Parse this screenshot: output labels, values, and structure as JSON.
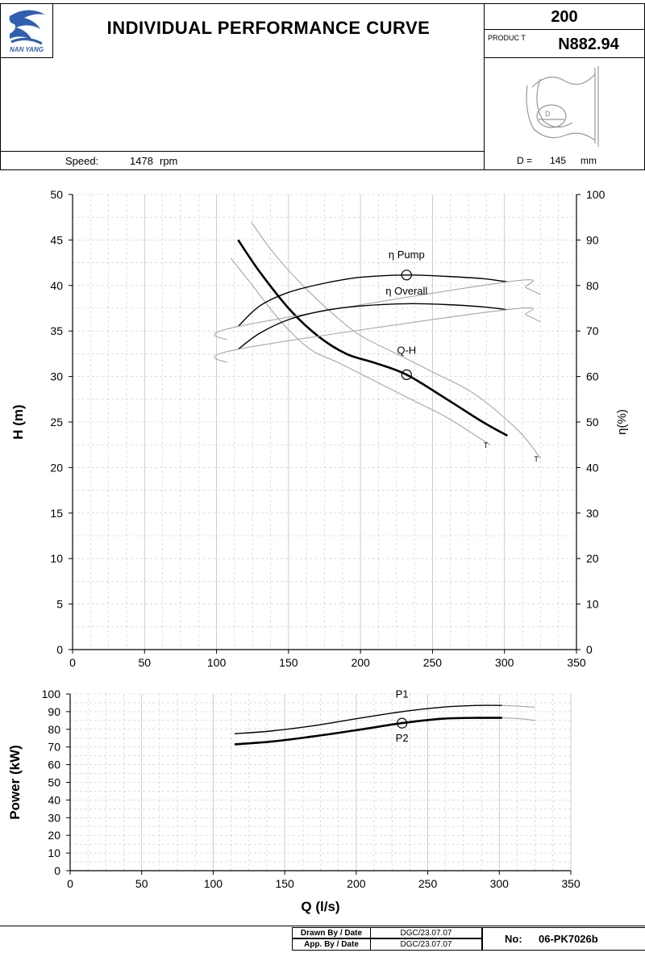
{
  "header": {
    "title": "INDIVIDUAL PERFORMANCE  CURVE",
    "logo_text": "NAN YANG",
    "model": "200",
    "product_label": "PRODUC T",
    "product_code": "N882.94",
    "speed_label": "Speed:",
    "speed_value": "1478",
    "speed_unit": "rpm",
    "diameter_label": "D =",
    "diameter_value": "145",
    "diameter_unit": "mm",
    "impeller_label": "D"
  },
  "footer": {
    "drawn_label": "Drawn By / Date",
    "drawn_value": "DGC/23.07.07",
    "approved_label": "App. By / Date",
    "approved_value": "DGC/23.07.07",
    "no_label": "No:",
    "no_value": "06-PK7026b"
  },
  "colors": {
    "main_curve": "#000000",
    "tolerance_curve": "#a6a6a6",
    "grid": "#c8c8c8"
  },
  "chart_data": [
    {
      "type": "line",
      "xlabel": "",
      "ylabel": "H (m)",
      "y2label": "η(%)",
      "xlim": [
        0,
        350
      ],
      "ylim": [
        0,
        50
      ],
      "y2lim": [
        0,
        100
      ],
      "xticks": [
        "0",
        "50",
        "100",
        "150",
        "200",
        "250",
        "300",
        "350"
      ],
      "yticks": [
        "0",
        "5",
        "10",
        "15",
        "20",
        "25",
        "30",
        "35",
        "40",
        "45",
        "50"
      ],
      "y2ticks": [
        "0",
        "10",
        "20",
        "30",
        "40",
        "50",
        "60",
        "70",
        "80",
        "90",
        "100"
      ],
      "grid": true,
      "series": [
        {
          "name": "Q-H",
          "axis": "left",
          "style": "main",
          "x": [
            115,
            130,
            150,
            170,
            190,
            210,
            232,
            260,
            285,
            302
          ],
          "y": [
            45,
            41.5,
            37.5,
            34.5,
            32.5,
            31.5,
            30.2,
            27.5,
            25,
            23.5
          ]
        },
        {
          "name": "",
          "axis": "left",
          "style": "tolerance",
          "end_label": "T",
          "x": [
            124,
            140,
            160,
            180,
            200,
            225,
            250,
            280,
            310,
            325
          ],
          "y": [
            47,
            43.5,
            40,
            37,
            34.5,
            32.5,
            30.5,
            28,
            24,
            21
          ]
        },
        {
          "name": "",
          "axis": "left",
          "style": "tolerance",
          "end_label": "T",
          "x": [
            110,
            125,
            145,
            165,
            185,
            210,
            235,
            260,
            290
          ],
          "y": [
            43,
            40,
            36,
            33,
            31.5,
            29.5,
            27.5,
            25.5,
            22.5
          ]
        },
        {
          "name": "η Pump",
          "axis": "right",
          "style": "main",
          "x": [
            115,
            130,
            150,
            175,
            200,
            232,
            260,
            285,
            302
          ],
          "y": [
            71,
            75.5,
            78.5,
            80.5,
            81.8,
            82.3,
            82,
            81.5,
            80.8
          ]
        },
        {
          "name": "",
          "axis": "right",
          "style": "tolerance",
          "x": [
            107,
            115,
            302,
            315,
            325
          ],
          "y": [
            68,
            71,
            80.8,
            79.5,
            78
          ]
        },
        {
          "name": "η Overall",
          "axis": "right",
          "style": "main",
          "x": [
            115,
            130,
            150,
            175,
            200,
            232,
            260,
            285,
            302
          ],
          "y": [
            66,
            69.5,
            72.5,
            74.5,
            75.5,
            76,
            75.8,
            75.3,
            74.7
          ]
        },
        {
          "name": "",
          "axis": "right",
          "style": "tolerance",
          "x": [
            107,
            115,
            302,
            315,
            325
          ],
          "y": [
            63,
            66,
            74.7,
            73.5,
            72
          ]
        }
      ],
      "markers": [
        {
          "x": 232,
          "y": 30.2,
          "axis": "left"
        },
        {
          "x": 232,
          "y": 82.3,
          "axis": "right"
        }
      ],
      "annotations": [
        {
          "text": "η Pump",
          "x": 232,
          "y": 86,
          "axis": "right"
        },
        {
          "text": "η Overall",
          "x": 232,
          "y": 78,
          "axis": "right"
        },
        {
          "text": "Q-H",
          "x": 232,
          "y": 32.5,
          "axis": "left"
        }
      ]
    },
    {
      "type": "line",
      "xlabel": "Q (l/s)",
      "ylabel": "Power (kW)",
      "xlim": [
        0,
        350
      ],
      "ylim": [
        0,
        100
      ],
      "xticks": [
        "0",
        "50",
        "100",
        "150",
        "200",
        "250",
        "300",
        "350"
      ],
      "yticks": [
        "0",
        "10",
        "20",
        "30",
        "40",
        "50",
        "60",
        "70",
        "80",
        "90",
        "100"
      ],
      "grid": true,
      "series": [
        {
          "name": "P1",
          "style": "main",
          "x": [
            115,
            140,
            170,
            200,
            232,
            260,
            285,
            302
          ],
          "y": [
            77.5,
            79,
            82,
            86,
            90,
            92.5,
            93.5,
            93.5
          ]
        },
        {
          "name": "",
          "style": "tolerance",
          "x": [
            302,
            315,
            325
          ],
          "y": [
            93.5,
            93,
            92.5
          ]
        },
        {
          "name": "P2",
          "style": "main",
          "x": [
            115,
            140,
            170,
            200,
            232,
            260,
            285,
            302
          ],
          "y": [
            71.5,
            73,
            76,
            79.5,
            83.5,
            86,
            86.5,
            86.5
          ]
        },
        {
          "name": "",
          "style": "tolerance",
          "x": [
            302,
            315,
            325
          ],
          "y": [
            86.5,
            86,
            85
          ]
        }
      ],
      "markers": [
        {
          "x": 232,
          "y": 83.5
        }
      ],
      "annotations": [
        {
          "text": "P1",
          "x": 232,
          "y": 98
        },
        {
          "text": "P2",
          "x": 232,
          "y": 73
        }
      ]
    }
  ]
}
